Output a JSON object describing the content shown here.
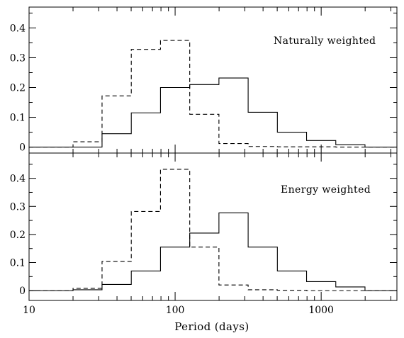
{
  "chart_data": {
    "type": "histogram",
    "x_scale": "log",
    "xlim": [
      10,
      3300
    ],
    "xlabel": "Period (days)",
    "xtick_labels": [
      "10",
      "100",
      "1000"
    ],
    "bin_edges": [
      20,
      31.6,
      50.1,
      79.4,
      125.9,
      199.5,
      316.2,
      501.2,
      794.3,
      1258.9,
      1995.3
    ],
    "panels": [
      {
        "label": "Naturally weighted",
        "ylim": [
          -0.02,
          0.47
        ],
        "yticks": [
          0,
          0.1,
          0.2,
          0.3,
          0.4
        ],
        "ytick_labels": [
          "0",
          "0.1",
          "0.2",
          "0.3",
          "0.4"
        ],
        "series": [
          {
            "style": "solid",
            "values": [
              0,
              0.045,
              0.115,
              0.2,
              0.21,
              0.232,
              0.117,
              0.05,
              0.022,
              0.008
            ]
          },
          {
            "style": "dashed",
            "values": [
              0.018,
              0.172,
              0.328,
              0.358,
              0.11,
              0.012,
              0.002,
              0.001,
              0.001,
              0.0
            ]
          }
        ]
      },
      {
        "label": "Energy weighted",
        "ylim": [
          -0.035,
          0.49
        ],
        "yticks": [
          0,
          0.1,
          0.2,
          0.3,
          0.4
        ],
        "ytick_labels": [
          "0",
          "0.1",
          "0.2",
          "0.3",
          "0.4"
        ],
        "series": [
          {
            "style": "solid",
            "values": [
              0.003,
              0.022,
              0.07,
              0.155,
              0.205,
              0.277,
              0.155,
              0.07,
              0.032,
              0.013
            ]
          },
          {
            "style": "dashed",
            "values": [
              0.008,
              0.104,
              0.282,
              0.432,
              0.155,
              0.02,
              0.003,
              0.001,
              0.0,
              0.0
            ]
          }
        ]
      }
    ]
  }
}
